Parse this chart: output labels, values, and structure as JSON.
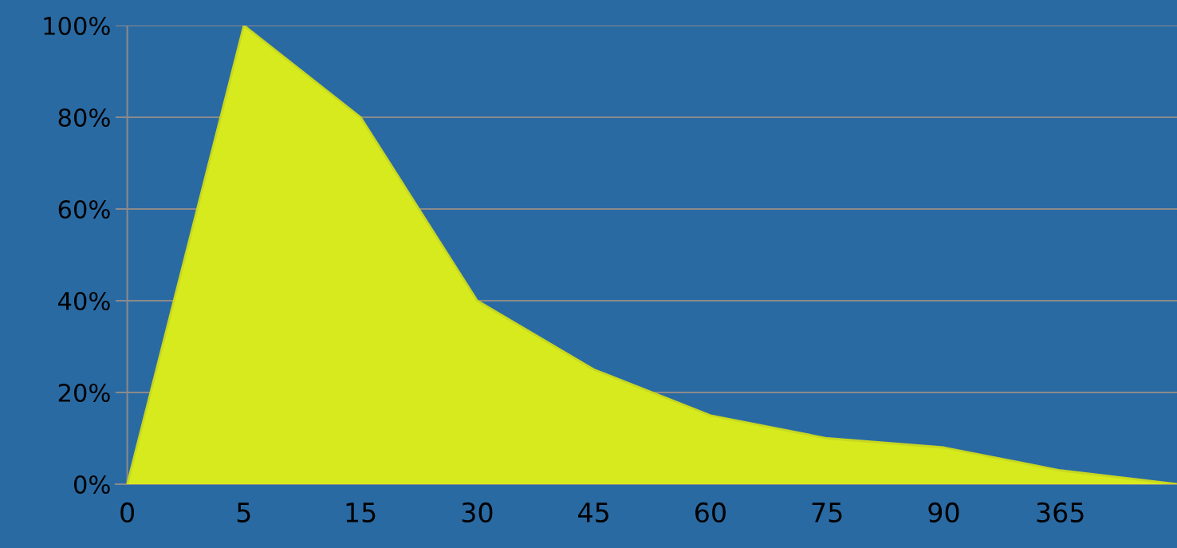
{
  "chart_data": {
    "type": "area",
    "categories": [
      "0",
      "5",
      "15",
      "30",
      "45",
      "60",
      "75",
      "90",
      "365",
      null
    ],
    "values": [
      0,
      100,
      80,
      40,
      25,
      15,
      10,
      8,
      3,
      0
    ],
    "color": "#d6ea1e",
    "ylim": [
      0,
      100
    ],
    "yticks": [
      {
        "value": 0,
        "label": "0%"
      },
      {
        "value": 20,
        "label": "20%"
      },
      {
        "value": 40,
        "label": "40%"
      },
      {
        "value": 60,
        "label": "60%"
      },
      {
        "value": 80,
        "label": "80%"
      },
      {
        "value": 100,
        "label": "100%"
      }
    ],
    "grid": "y",
    "legend": false
  }
}
